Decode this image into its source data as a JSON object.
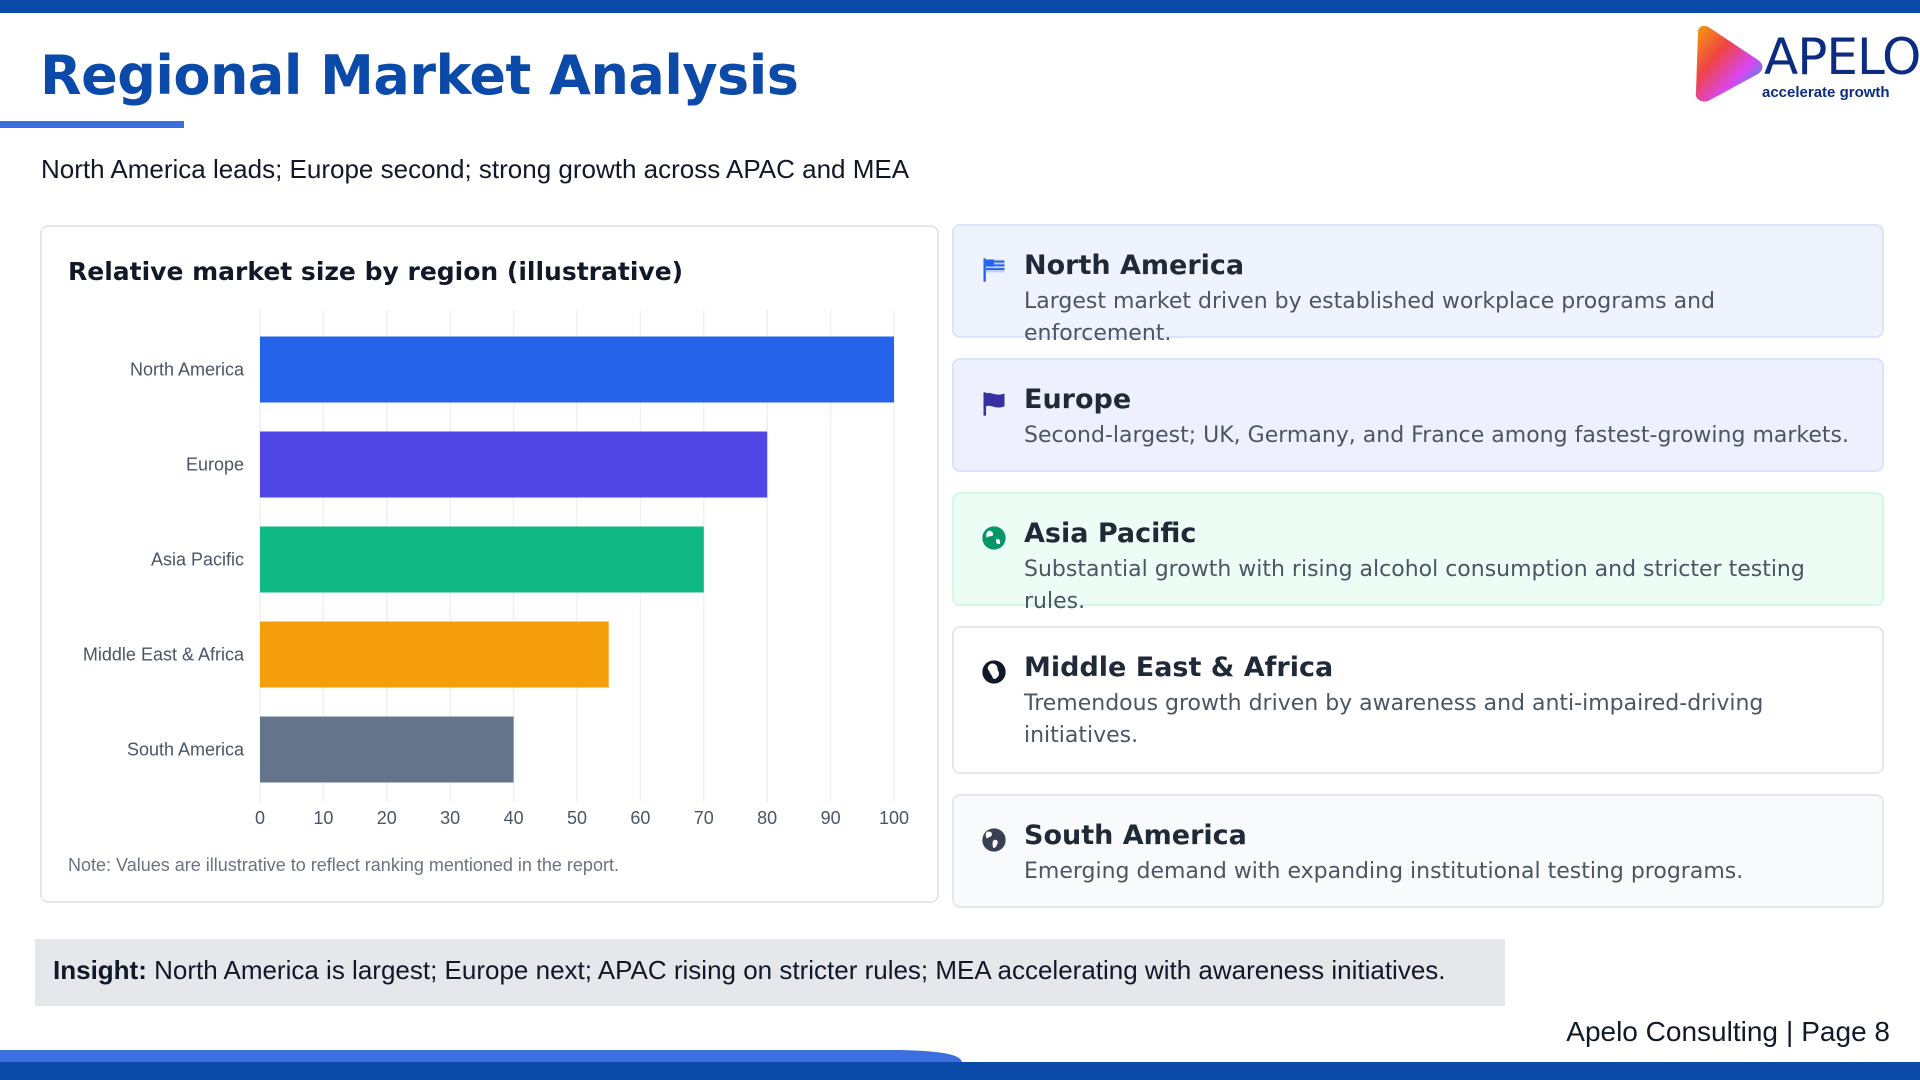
{
  "header": {
    "title": "Regional Market Analysis",
    "subtitle": "North America leads; Europe second; strong growth across APAC and MEA"
  },
  "logo": {
    "name": "APELO",
    "tagline": "accelerate growth"
  },
  "chart_data": {
    "type": "bar",
    "orientation": "horizontal",
    "title": "Relative market size by region (illustrative)",
    "categories": [
      "North America",
      "Europe",
      "Asia Pacific",
      "Middle East & Africa",
      "South America"
    ],
    "values": [
      100,
      80,
      70,
      55,
      40
    ],
    "colors": [
      "#2563eb",
      "#4f46e5",
      "#10b981",
      "#f59e0b",
      "#64748b"
    ],
    "xlim": [
      0,
      100
    ],
    "xticks": [
      0,
      10,
      20,
      30,
      40,
      50,
      60,
      70,
      80,
      90,
      100
    ],
    "grid": true,
    "xlabel": "",
    "ylabel": "",
    "note": "Note: Values are illustrative to reflect ranking mentioned in the report."
  },
  "regions": [
    {
      "name": "North America",
      "description": "Largest market driven by established workplace programs and enforcement.",
      "icon": "flag-usa-icon",
      "bg": "#eef3fd",
      "border": "#dbe5f8",
      "icon_color": "#2563eb"
    },
    {
      "name": "Europe",
      "description": "Second-largest; UK, Germany, and France among fastest-growing markets.",
      "icon": "flag-icon",
      "bg": "#eef1fd",
      "border": "#dde3f8",
      "icon_color": "#3730a3"
    },
    {
      "name": "Asia Pacific",
      "description": "Substantial growth with rising alcohol consumption and stricter testing rules.",
      "icon": "globe-asia-icon",
      "bg": "#ecfdf5",
      "border": "#d1fae5",
      "icon_color": "#059669"
    },
    {
      "name": "Middle East & Africa",
      "description": "Tremendous growth driven by awareness and anti-impaired-driving initiatives.",
      "icon": "globe-africa-icon",
      "bg": "#ffffff",
      "border": "#e5e7eb",
      "icon_color": "#111827"
    },
    {
      "name": "South America",
      "description": "Emerging demand with expanding institutional testing programs.",
      "icon": "globe-americas-icon",
      "bg": "#f9fafb",
      "border": "#e5e7eb",
      "icon_color": "#374151"
    }
  ],
  "insight": {
    "label": "Insight:",
    "text": "North America is largest; Europe next; APAC rising on stricter rules; MEA accelerating with awareness initiatives."
  },
  "footer": {
    "company": "Apelo Consulting",
    "separator": "|",
    "page": "Page 8"
  },
  "colors": {
    "brand": "#0b4aa8",
    "accent": "#3b6fe0"
  }
}
